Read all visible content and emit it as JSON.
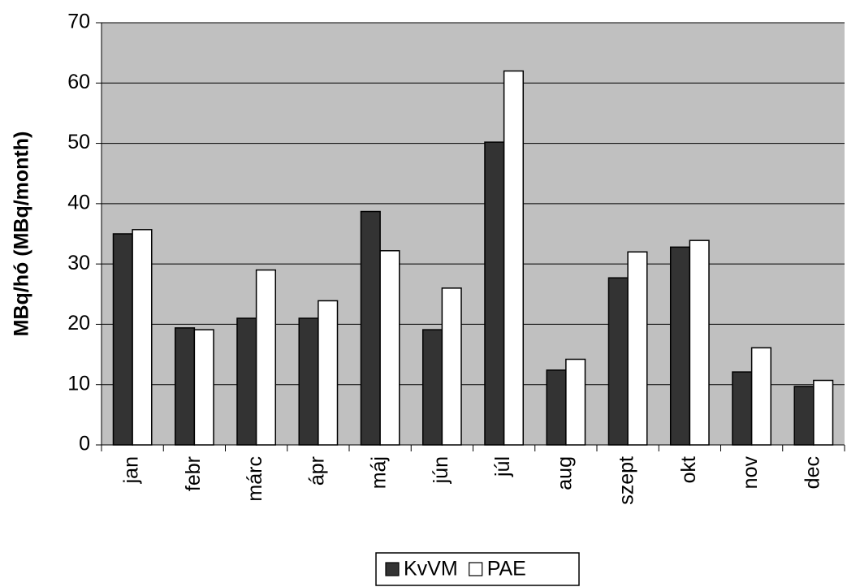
{
  "chart_data": {
    "type": "bar",
    "y_label": "MBq/hó (MBq/month)",
    "categories": [
      "jan",
      "febr",
      "márc",
      "ápr",
      "máj",
      "jún",
      "júl",
      "aug",
      "szept",
      "okt",
      "nov",
      "dec"
    ],
    "series": [
      {
        "name": "KvVM",
        "color": "#333333",
        "values": [
          35,
          19.4,
          21,
          21,
          38.7,
          19.1,
          50.2,
          12.4,
          27.7,
          32.8,
          12.1,
          9.7
        ]
      },
      {
        "name": "PAE",
        "color": "#ffffff",
        "values": [
          35.7,
          19.1,
          29,
          23.9,
          32.2,
          26,
          62,
          14.2,
          32,
          33.9,
          16.1,
          10.7
        ]
      }
    ],
    "ylim": [
      0,
      70
    ],
    "yticks": [
      0,
      10,
      20,
      30,
      40,
      50,
      60,
      70
    ],
    "grid": true,
    "plot_background": "#c0c0c0",
    "legend": "bottom"
  }
}
